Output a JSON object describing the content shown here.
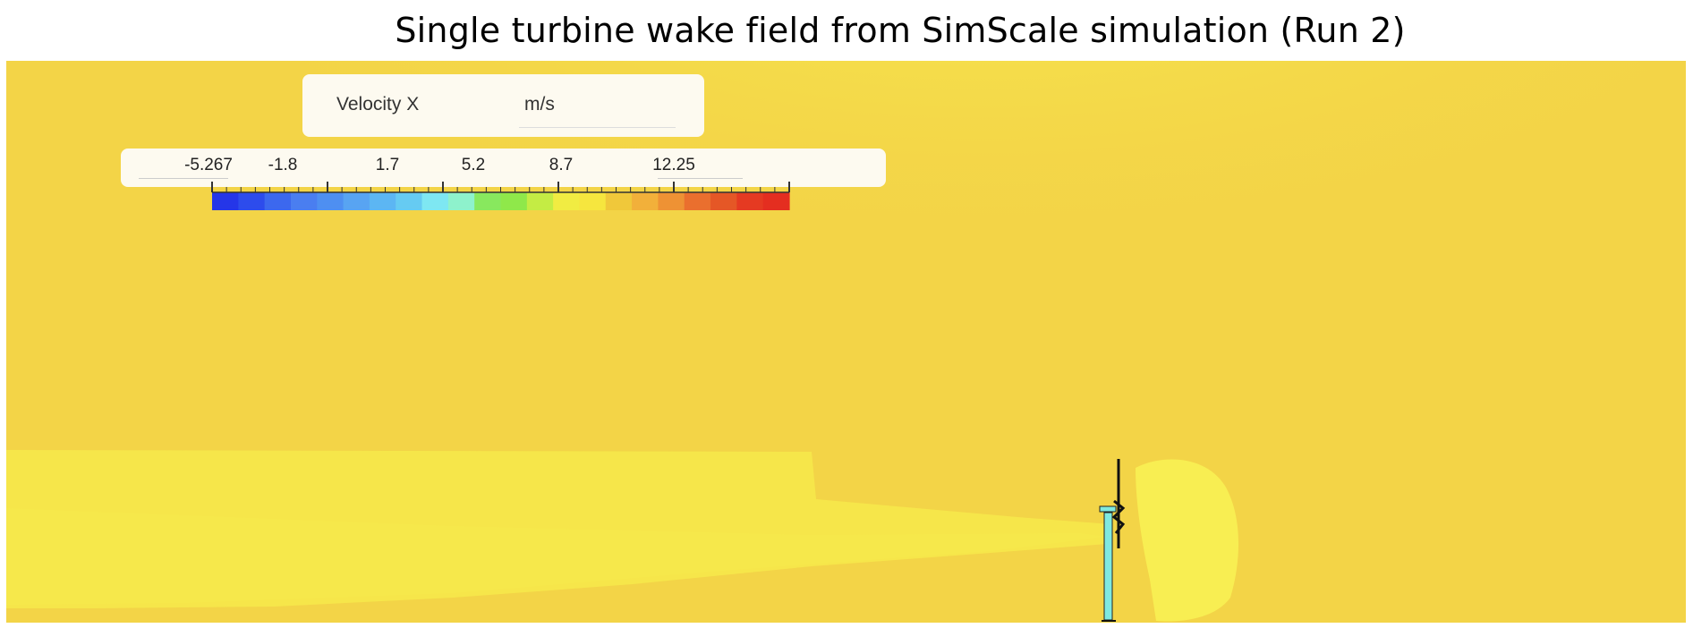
{
  "title": "Single turbine wake field from SimScale simulation (Run 2)",
  "legend": {
    "quantity": "Velocity X",
    "unit": "m/s",
    "ticks": [
      "-5.267",
      "-1.8",
      "1.7",
      "5.2",
      "8.7",
      "12.25"
    ],
    "colors": [
      "#2536e8",
      "#2d4cec",
      "#3c68ee",
      "#4a7ef0",
      "#4e8ff1",
      "#58a4f2",
      "#5cb6f3",
      "#66cbf2",
      "#7ee7f2",
      "#8ef2cc",
      "#88e85e",
      "#8fe84a",
      "#c4ec44",
      "#f1ec42",
      "#f6e63e",
      "#f0c83a",
      "#f2b03a",
      "#ee9234",
      "#ea6f2e",
      "#e55726",
      "#e53a22",
      "#e42e20"
    ]
  },
  "field": {
    "background_color": "#f3d447",
    "upper_glow_color": "#f8ea50",
    "wake_color": "#f6e64a",
    "inner_wake_color": "#f7ea4c",
    "bubble_color": "#f8ee52",
    "tower_color": "#7fe9e0"
  }
}
